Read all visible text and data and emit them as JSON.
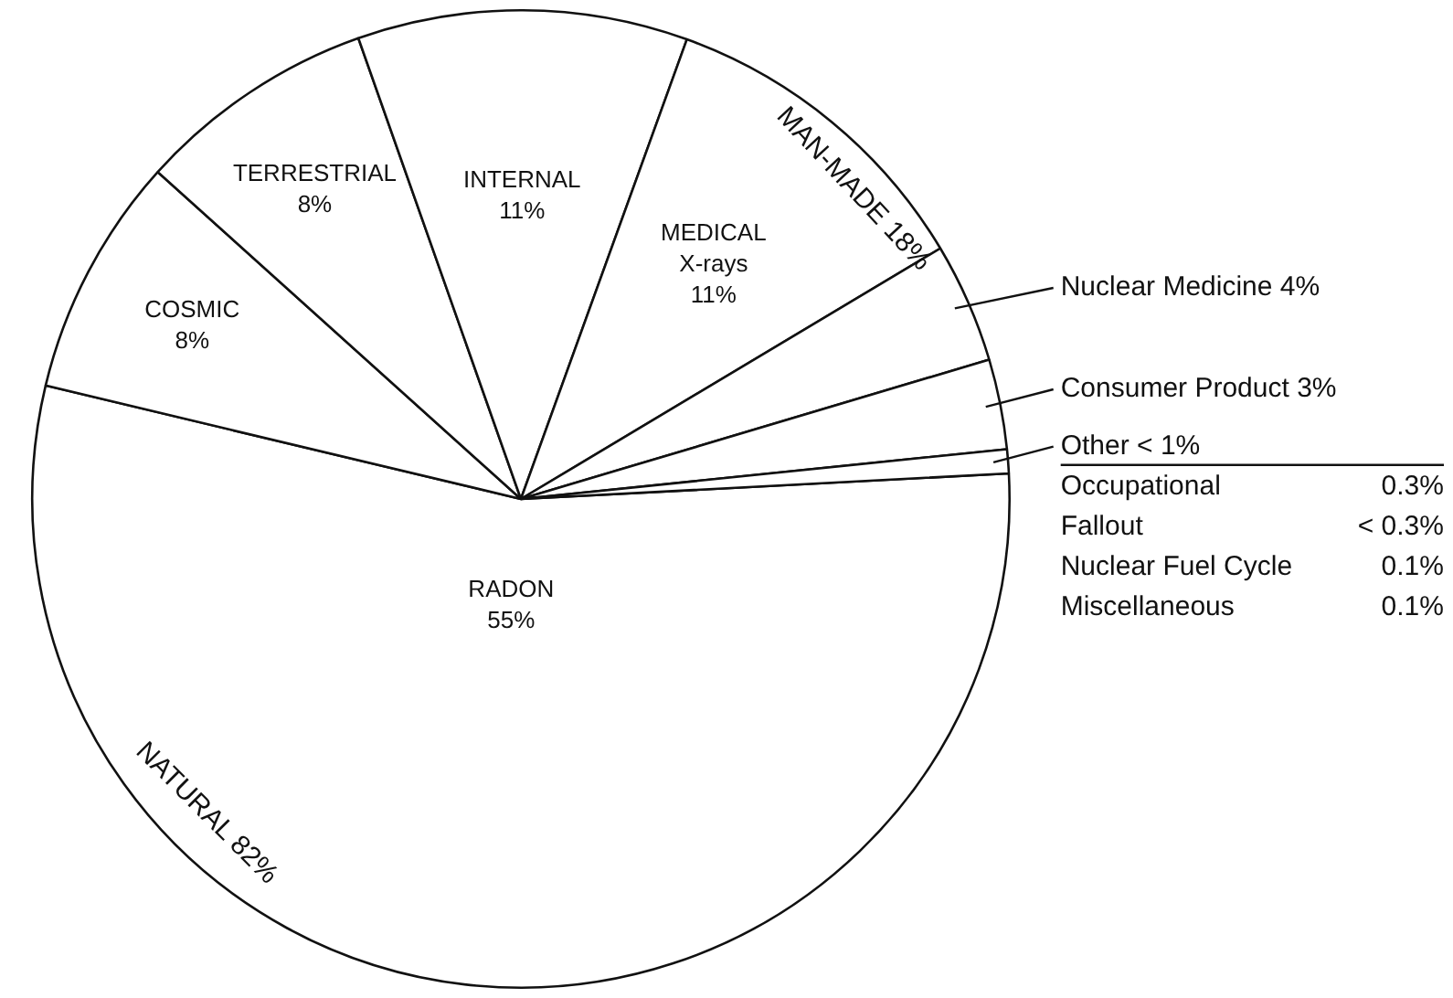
{
  "chart_data": {
    "type": "pie",
    "categories": [
      "RADON",
      "COSMIC",
      "TERRESTRIAL",
      "INTERNAL",
      "MEDICAL X-rays",
      "Nuclear Medicine",
      "Consumer Product",
      "Other"
    ],
    "values": [
      55,
      8,
      8,
      11,
      11,
      4,
      3,
      0.8
    ],
    "value_labels": [
      "55%",
      "8%",
      "8%",
      "11%",
      "11%",
      "4%",
      "3%",
      "< 1%"
    ],
    "colors": [
      "#ffffff",
      "#ffffff",
      "#ffffff",
      "#ffffff",
      "#ffffff",
      "#ffffff",
      "#ffffff",
      "#ffffff"
    ],
    "annotations": [
      "MAN-MADE 18%",
      "NATURAL 82%",
      "Occupational 0.3%",
      "Fallout < 0.3%",
      "Nuclear Fuel Cycle 0.1%",
      "Miscellaneous 0.1%"
    ],
    "legend": false
  }
}
